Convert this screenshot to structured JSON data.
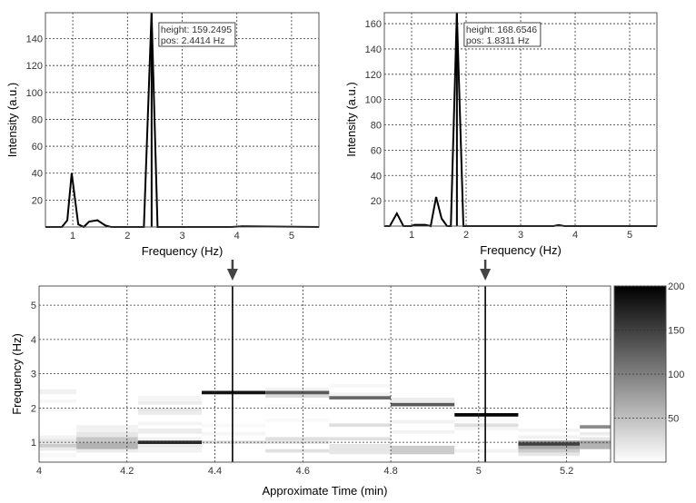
{
  "chart_data": [
    {
      "id": "spectrum-left",
      "type": "line",
      "xlabel": "Frequency (Hz)",
      "ylabel": "Intensity (a.u.)",
      "xlim": [
        0.5,
        5.5
      ],
      "ylim": [
        0,
        159.25
      ],
      "xticks": [
        "1",
        "2",
        "3",
        "4",
        "5"
      ],
      "yticks": [
        "20",
        "40",
        "60",
        "80",
        "100",
        "120",
        "140"
      ],
      "grid": true,
      "series": [
        {
          "name": "spectrum",
          "x": [
            0.5,
            0.8,
            0.9,
            0.98,
            1.1,
            1.2,
            1.3,
            1.45,
            1.6,
            1.7,
            2.3,
            2.44,
            2.55,
            3.9,
            4.1,
            5.5
          ],
          "y": [
            0,
            0,
            5,
            40,
            2,
            0,
            4,
            5,
            1,
            0,
            0,
            159.25,
            0,
            0,
            0.5,
            0
          ]
        }
      ],
      "marker_line": 2.4414,
      "annotation": {
        "line1": "height: 159.2495",
        "line2": "pos: 2.4414 Hz"
      }
    },
    {
      "id": "spectrum-right",
      "type": "line",
      "xlabel": "Frequency (Hz)",
      "ylabel": "Intensity (a.u.)",
      "xlim": [
        0.5,
        5.5
      ],
      "ylim": [
        0,
        168.65
      ],
      "xticks": [
        "1",
        "2",
        "3",
        "4",
        "5"
      ],
      "yticks": [
        "20",
        "40",
        "60",
        "80",
        "100",
        "120",
        "140",
        "160"
      ],
      "grid": true,
      "series": [
        {
          "name": "spectrum",
          "x": [
            0.5,
            0.6,
            0.73,
            0.85,
            1.0,
            1.05,
            1.25,
            1.35,
            1.45,
            1.55,
            1.65,
            1.72,
            1.83,
            1.95,
            3.6,
            3.7,
            3.8,
            5.5
          ],
          "y": [
            0,
            0,
            10,
            0,
            0,
            1,
            1,
            0,
            23,
            6,
            0,
            0,
            168.65,
            0,
            0,
            0.8,
            0,
            0
          ]
        }
      ],
      "marker_line": 1.8311,
      "annotation": {
        "line1": "height: 168.6546",
        "line2": "pos: 1.8311 Hz"
      }
    },
    {
      "id": "spectrogram",
      "type": "heatmap",
      "xlabel": "Approximate Time (min)",
      "ylabel": "Frequency (Hz)",
      "xlim": [
        4,
        5.3
      ],
      "ylim": [
        0.42,
        5.56
      ],
      "xticks": [
        "4",
        "4.2",
        "4.4",
        "4.6",
        "4.8",
        "5",
        "5.2"
      ],
      "yticks": [
        "1",
        "2",
        "3",
        "4",
        "5"
      ],
      "grid": true,
      "colorbar": {
        "range": [
          0,
          200
        ],
        "ticks": [
          "50",
          "100",
          "150",
          "200"
        ]
      },
      "marker_lines": [
        4.44,
        5.015
      ],
      "columns": [
        {
          "t0": 4.0,
          "t1": 4.085,
          "cells": [
            [
              0.55,
              0.7,
              5
            ],
            [
              0.75,
              0.85,
              15
            ],
            [
              0.85,
              0.95,
              40
            ],
            [
              0.95,
              1.1,
              20
            ],
            [
              1.1,
              1.2,
              10
            ],
            [
              1.9,
              2.0,
              8
            ],
            [
              2.15,
              2.25,
              6
            ],
            [
              2.4,
              2.55,
              10
            ]
          ]
        },
        {
          "t0": 4.085,
          "t1": 4.225,
          "cells": [
            [
              0.7,
              0.8,
              15
            ],
            [
              0.8,
              1.0,
              60
            ],
            [
              1.0,
              1.15,
              45
            ],
            [
              1.15,
              1.3,
              20
            ],
            [
              1.3,
              1.5,
              10
            ],
            [
              3.0,
              3.05,
              5
            ]
          ]
        },
        {
          "t0": 4.225,
          "t1": 4.37,
          "cells": [
            [
              0.7,
              0.85,
              10
            ],
            [
              0.85,
              0.95,
              15
            ],
            [
              0.95,
              1.05,
              170
            ],
            [
              1.05,
              1.15,
              10
            ],
            [
              1.25,
              1.4,
              15
            ],
            [
              1.5,
              1.6,
              8
            ],
            [
              1.8,
              1.9,
              15
            ],
            [
              1.9,
              2.0,
              20
            ],
            [
              2.1,
              2.2,
              15
            ],
            [
              2.2,
              2.35,
              8
            ]
          ]
        },
        {
          "t0": 4.37,
          "t1": 4.515,
          "cells": [
            [
              0.95,
              1.05,
              25
            ],
            [
              1.2,
              1.3,
              8
            ],
            [
              1.45,
              1.55,
              5
            ],
            [
              2.4,
              2.5,
              185
            ]
          ]
        },
        {
          "t0": 4.515,
          "t1": 4.66,
          "cells": [
            [
              0.7,
              0.8,
              25
            ],
            [
              0.95,
              1.05,
              20
            ],
            [
              1.05,
              1.15,
              25
            ],
            [
              1.6,
              1.7,
              5
            ],
            [
              2.0,
              2.1,
              5
            ],
            [
              2.3,
              2.4,
              30
            ],
            [
              2.4,
              2.5,
              130
            ],
            [
              2.5,
              2.6,
              10
            ]
          ]
        },
        {
          "t0": 4.66,
          "t1": 4.8,
          "cells": [
            [
              0.65,
              0.95,
              20
            ],
            [
              1.05,
              1.15,
              25
            ],
            [
              1.45,
              1.55,
              25
            ],
            [
              1.95,
              2.05,
              6
            ],
            [
              2.25,
              2.35,
              120
            ],
            [
              2.35,
              2.45,
              10
            ],
            [
              2.6,
              2.7,
              6
            ]
          ]
        },
        {
          "t0": 4.8,
          "t1": 4.945,
          "cells": [
            [
              0.65,
              0.9,
              40
            ],
            [
              1.25,
              1.35,
              10
            ],
            [
              1.55,
              1.65,
              10
            ],
            [
              1.9,
              2.0,
              6
            ],
            [
              2.05,
              2.15,
              130
            ],
            [
              2.15,
              2.3,
              15
            ]
          ]
        },
        {
          "t0": 4.945,
          "t1": 5.09,
          "cells": [
            [
              0.7,
              0.8,
              10
            ],
            [
              1.35,
              1.45,
              8
            ],
            [
              1.45,
              1.55,
              25
            ],
            [
              1.6,
              1.7,
              5
            ],
            [
              1.75,
              1.85,
              195
            ]
          ]
        },
        {
          "t0": 5.09,
          "t1": 5.23,
          "cells": [
            [
              0.6,
              0.7,
              20
            ],
            [
              0.7,
              0.8,
              40
            ],
            [
              0.8,
              0.9,
              70
            ],
            [
              0.9,
              1.0,
              150
            ],
            [
              1.0,
              1.05,
              80
            ],
            [
              1.1,
              1.2,
              10
            ],
            [
              1.3,
              1.4,
              8
            ]
          ]
        },
        {
          "t0": 5.23,
          "t1": 5.3,
          "cells": [
            [
              0.8,
              0.95,
              60
            ],
            [
              0.95,
              1.05,
              70
            ],
            [
              1.05,
              1.15,
              20
            ],
            [
              1.2,
              1.3,
              15
            ],
            [
              1.4,
              1.5,
              90
            ]
          ]
        }
      ]
    }
  ],
  "colors": {
    "line": "#000000",
    "grid": "#333333",
    "arrow": "#444444"
  }
}
